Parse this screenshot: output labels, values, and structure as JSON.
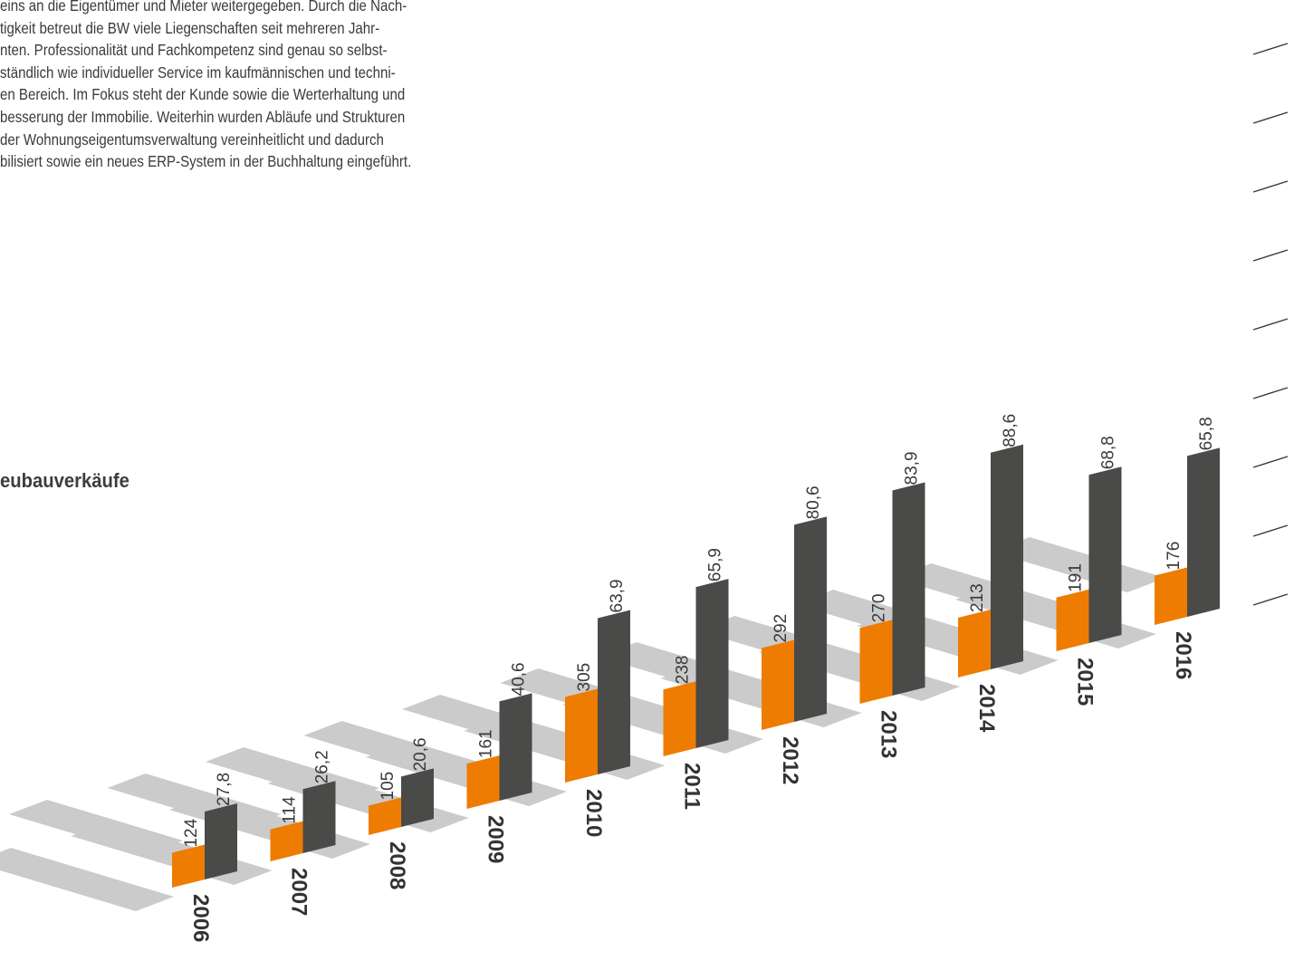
{
  "intro": {
    "lines": [
      "eins an die Eigentümer und Mieter weitergegeben. Durch die Nach-",
      "tigkeit betreut die BW viele Liegenschaften seit mehreren Jahr-",
      "nten. Professionalität und Fachkompetenz sind genau so selbst-",
      "ständlich wie individueller Service im kaufmännischen und techni-",
      "en Bereich. Im Fokus steht der Kunde sowie die Werterhaltung und",
      "besserung der Immobilie. Weiterhin wurden Abläufe und Strukturen",
      "der Wohnungseigentumsverwaltung vereinheitlicht und dadurch",
      "bilisiert sowie ein neues ERP-System in der Buchhaltung eingeführt."
    ]
  },
  "section_title": "eubauverkäufe",
  "colors": {
    "orange": "#EE7C00",
    "orange_dark": "#C96700",
    "dark": "#4A4A48",
    "dark_side": "#3A3A38",
    "shadow": "#CBCBCB",
    "text": "#3A3A3A"
  },
  "chart_data": {
    "type": "bar",
    "categories": [
      "2006",
      "2007",
      "2008",
      "2009",
      "2010",
      "2011",
      "2012",
      "2013",
      "2014",
      "2015",
      "2016"
    ],
    "series": [
      {
        "color": "#EE7C00",
        "values": [
          124,
          114,
          105,
          161,
          305,
          238,
          292,
          270,
          213,
          191,
          176
        ],
        "labels": [
          "124",
          "114",
          "105",
          "161",
          "305",
          "238",
          "292",
          "270",
          "213",
          "191",
          "176"
        ]
      },
      {
        "color": "#4A4A48",
        "values": [
          27.8,
          26.2,
          20.6,
          40.6,
          63.9,
          65.9,
          80.6,
          83.9,
          88.6,
          68.8,
          65.8
        ],
        "labels": [
          "27,8",
          "26,2",
          "20,6",
          "40,6",
          "63,9",
          "65,9",
          "80,6",
          "83,9",
          "88,6",
          "68,8",
          "65,8"
        ]
      }
    ],
    "legend": "none"
  }
}
